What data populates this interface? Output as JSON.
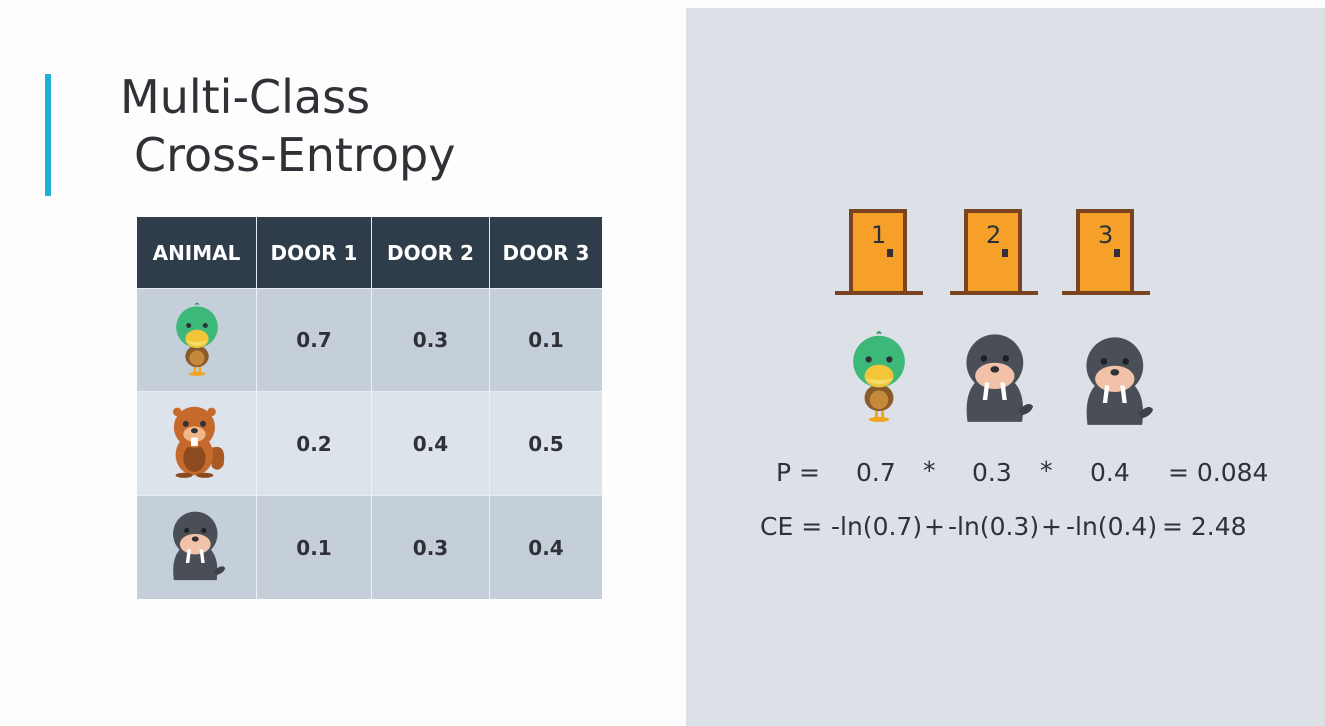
{
  "title": {
    "line1": "Multi-Class",
    "line2": "Cross-Entropy"
  },
  "table": {
    "headers": [
      "ANIMAL",
      "DOOR 1",
      "DOOR 2",
      "DOOR 3"
    ],
    "rows": [
      {
        "animal": "duck",
        "values": [
          "0.7",
          "0.3",
          "0.1"
        ]
      },
      {
        "animal": "beaver",
        "values": [
          "0.2",
          "0.4",
          "0.5"
        ]
      },
      {
        "animal": "walrus",
        "values": [
          "0.1",
          "0.3",
          "0.4"
        ]
      }
    ]
  },
  "doors": [
    "1",
    "2",
    "3"
  ],
  "scene_animals": [
    "duck",
    "walrus",
    "walrus"
  ],
  "equation_p": {
    "label": "P =",
    "v1": "0.7",
    "op1": "*",
    "v2": "0.3",
    "op2": "*",
    "v3": "0.4",
    "result": "= 0.084"
  },
  "equation_ce": {
    "label": "CE =",
    "t1": "-ln(0.7)",
    "op1": "+",
    "t2": "-ln(0.3)",
    "op2": "+",
    "t3": "-ln(0.4)",
    "result": "= 2.48"
  },
  "colors": {
    "accent": "#1fb0d8",
    "header_bg": "#2e3d49",
    "door": "#f6a02a",
    "door_frame": "#7a4420",
    "panel_bg": "#dce1e7"
  }
}
